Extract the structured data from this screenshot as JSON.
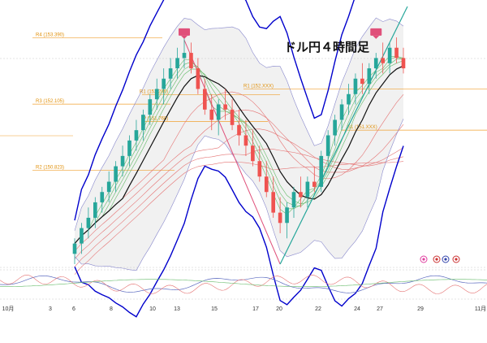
{
  "chart_data": {
    "type": "candlestick",
    "title": "ドル円４時間足",
    "x_ticks": [
      "10月",
      "3",
      "6",
      "8",
      "10",
      "13",
      "15",
      "17",
      "20",
      "22",
      "24",
      "27",
      "29",
      "11月"
    ],
    "levels": [
      {
        "name": "R4",
        "label": "R4 (153.390)",
        "value": 153.39
      },
      {
        "name": "R1",
        "label": "R1 (152.286)",
        "value": 152.286
      },
      {
        "name": "R3",
        "label": "R3 (152.105)",
        "value": 152.105
      },
      {
        "name": "R2",
        "label": "R2 (150.823)",
        "value": 150.823
      },
      {
        "name": "P",
        "label": "P (151.768)",
        "value": 151.768
      },
      {
        "name": "R1b",
        "label": "R1 (152.XXX)",
        "value": 152.4
      },
      {
        "name": "S1",
        "label": "S1 (151.XXX)",
        "value": 151.6
      }
    ],
    "price_range": [
      149.0,
      154.0
    ],
    "candles": [
      {
        "o": 149.2,
        "h": 149.5,
        "l": 149.0,
        "c": 149.4
      },
      {
        "o": 149.4,
        "h": 149.8,
        "l": 149.2,
        "c": 149.7
      },
      {
        "o": 149.7,
        "h": 150.1,
        "l": 149.5,
        "c": 149.9
      },
      {
        "o": 149.9,
        "h": 150.3,
        "l": 149.7,
        "c": 150.2
      },
      {
        "o": 150.2,
        "h": 150.5,
        "l": 150.0,
        "c": 150.4
      },
      {
        "o": 150.4,
        "h": 150.8,
        "l": 150.2,
        "c": 150.6
      },
      {
        "o": 150.6,
        "h": 151.0,
        "l": 150.4,
        "c": 150.9
      },
      {
        "o": 150.9,
        "h": 151.3,
        "l": 150.7,
        "c": 151.1
      },
      {
        "o": 151.1,
        "h": 151.5,
        "l": 150.9,
        "c": 151.4
      },
      {
        "o": 151.4,
        "h": 151.8,
        "l": 151.2,
        "c": 151.6
      },
      {
        "o": 151.6,
        "h": 152.0,
        "l": 151.4,
        "c": 151.9
      },
      {
        "o": 151.9,
        "h": 152.3,
        "l": 151.7,
        "c": 152.2
      },
      {
        "o": 152.2,
        "h": 152.6,
        "l": 152.0,
        "c": 152.4
      },
      {
        "o": 152.4,
        "h": 152.8,
        "l": 152.1,
        "c": 152.6
      },
      {
        "o": 152.6,
        "h": 153.0,
        "l": 152.4,
        "c": 152.8
      },
      {
        "o": 152.8,
        "h": 153.2,
        "l": 152.6,
        "c": 153.0
      },
      {
        "o": 153.0,
        "h": 153.4,
        "l": 152.8,
        "c": 153.1
      },
      {
        "o": 153.1,
        "h": 153.3,
        "l": 152.7,
        "c": 152.8
      },
      {
        "o": 152.8,
        "h": 153.0,
        "l": 152.3,
        "c": 152.4
      },
      {
        "o": 152.4,
        "h": 152.6,
        "l": 151.9,
        "c": 152.0
      },
      {
        "o": 152.0,
        "h": 152.3,
        "l": 151.6,
        "c": 151.8
      },
      {
        "o": 151.8,
        "h": 152.2,
        "l": 151.5,
        "c": 152.1
      },
      {
        "o": 152.1,
        "h": 152.4,
        "l": 151.8,
        "c": 152.0
      },
      {
        "o": 152.0,
        "h": 152.2,
        "l": 151.6,
        "c": 151.7
      },
      {
        "o": 151.7,
        "h": 152.0,
        "l": 151.3,
        "c": 151.5
      },
      {
        "o": 151.5,
        "h": 151.8,
        "l": 151.1,
        "c": 151.3
      },
      {
        "o": 151.3,
        "h": 151.6,
        "l": 150.9,
        "c": 151.0
      },
      {
        "o": 151.0,
        "h": 151.3,
        "l": 150.6,
        "c": 150.7
      },
      {
        "o": 150.7,
        "h": 151.0,
        "l": 150.3,
        "c": 150.4
      },
      {
        "o": 150.4,
        "h": 150.7,
        "l": 149.9,
        "c": 150.0
      },
      {
        "o": 150.0,
        "h": 150.3,
        "l": 149.6,
        "c": 149.8
      },
      {
        "o": 149.8,
        "h": 150.2,
        "l": 149.5,
        "c": 150.1
      },
      {
        "o": 150.1,
        "h": 150.5,
        "l": 149.9,
        "c": 150.4
      },
      {
        "o": 150.4,
        "h": 150.7,
        "l": 150.1,
        "c": 150.3
      },
      {
        "o": 150.3,
        "h": 150.7,
        "l": 150.1,
        "c": 150.6
      },
      {
        "o": 150.6,
        "h": 150.9,
        "l": 150.4,
        "c": 150.5
      },
      {
        "o": 150.5,
        "h": 151.2,
        "l": 150.4,
        "c": 151.1
      },
      {
        "o": 151.1,
        "h": 151.6,
        "l": 150.9,
        "c": 151.5
      },
      {
        "o": 151.5,
        "h": 151.9,
        "l": 151.3,
        "c": 151.8
      },
      {
        "o": 151.8,
        "h": 152.2,
        "l": 151.6,
        "c": 152.1
      },
      {
        "o": 152.1,
        "h": 152.5,
        "l": 151.9,
        "c": 152.3
      },
      {
        "o": 152.3,
        "h": 152.7,
        "l": 152.1,
        "c": 152.6
      },
      {
        "o": 152.6,
        "h": 152.9,
        "l": 152.3,
        "c": 152.5
      },
      {
        "o": 152.5,
        "h": 152.9,
        "l": 152.3,
        "c": 152.8
      },
      {
        "o": 152.8,
        "h": 153.1,
        "l": 152.6,
        "c": 153.0
      },
      {
        "o": 153.0,
        "h": 153.3,
        "l": 152.7,
        "c": 152.9
      },
      {
        "o": 152.9,
        "h": 153.3,
        "l": 152.7,
        "c": 153.2
      },
      {
        "o": 153.2,
        "h": 153.4,
        "l": 152.9,
        "c": 153.0
      },
      {
        "o": 153.0,
        "h": 153.2,
        "l": 152.7,
        "c": 152.8
      }
    ],
    "colors": {
      "up": "#26a69a",
      "down": "#ef5350",
      "bollinger": "#0000cc",
      "level": "#f0a030",
      "trend": "#26a69a",
      "resistance_marker": "#e0507a"
    }
  }
}
